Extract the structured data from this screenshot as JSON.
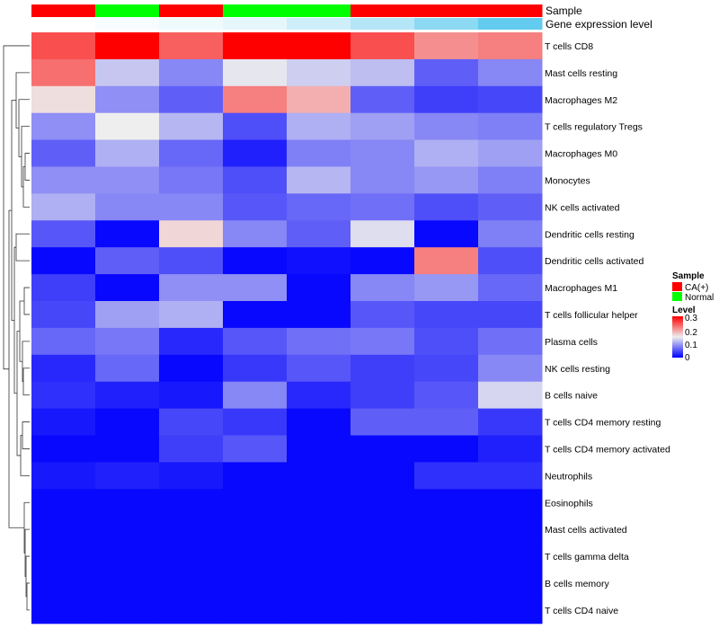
{
  "chart_data": {
    "type": "heatmap",
    "title": "",
    "annotation_tracks": [
      {
        "name": "Sample",
        "values": [
          "CA(+)",
          "Normal",
          "CA(+)",
          "Normal",
          "Normal",
          "CA(+)",
          "CA(+)",
          "CA(+)"
        ]
      },
      {
        "name": "Gene expression level",
        "values": [
          0,
          0.05,
          0.1,
          0.15,
          0.3,
          0.45,
          0.7,
          0.95
        ],
        "colors": [
          "#ffffff",
          "#5bc8ee"
        ]
      }
    ],
    "rows": [
      "T cells CD8",
      "Mast cells resting",
      "Macrophages M2",
      "T cells regulatory  Tregs",
      "Macrophages M0",
      "Monocytes",
      "NK cells activated",
      "Dendritic cells resting",
      "Dendritic cells activated",
      "Macrophages M1",
      "T cells follicular helper",
      "Plasma cells",
      "NK cells resting",
      "B cells naive",
      "T cells CD4 memory resting",
      "T cells CD4 memory activated",
      "Neutrophils",
      "Eosinophils",
      "Mast cells activated",
      "T cells gamma delta",
      "B cells memory",
      "T cells CD4 naive"
    ],
    "values": [
      [
        0.25,
        0.3,
        0.24,
        0.3,
        0.3,
        0.25,
        0.21,
        0.22
      ],
      [
        0.23,
        0.125,
        0.085,
        0.145,
        0.13,
        0.12,
        0.06,
        0.085
      ],
      [
        0.16,
        0.09,
        0.06,
        0.22,
        0.19,
        0.06,
        0.04,
        0.045
      ],
      [
        0.09,
        0.15,
        0.115,
        0.05,
        0.11,
        0.1,
        0.085,
        0.08
      ],
      [
        0.06,
        0.11,
        0.065,
        0.02,
        0.08,
        0.085,
        0.11,
        0.1
      ],
      [
        0.09,
        0.09,
        0.075,
        0.05,
        0.115,
        0.085,
        0.095,
        0.08
      ],
      [
        0.11,
        0.085,
        0.085,
        0.055,
        0.065,
        0.07,
        0.05,
        0.06
      ],
      [
        0.055,
        0.005,
        0.165,
        0.085,
        0.06,
        0.14,
        0.005,
        0.08
      ],
      [
        0.005,
        0.06,
        0.05,
        0.005,
        0.01,
        0.005,
        0.22,
        0.05
      ],
      [
        0.04,
        0.005,
        0.09,
        0.09,
        0.005,
        0.085,
        0.095,
        0.065
      ],
      [
        0.045,
        0.1,
        0.11,
        0.005,
        0.005,
        0.055,
        0.045,
        0.045
      ],
      [
        0.065,
        0.075,
        0.025,
        0.055,
        0.07,
        0.075,
        0.05,
        0.07
      ],
      [
        0.025,
        0.065,
        0.005,
        0.035,
        0.055,
        0.04,
        0.045,
        0.085
      ],
      [
        0.03,
        0.02,
        0.015,
        0.085,
        0.025,
        0.04,
        0.055,
        0.135
      ],
      [
        0.015,
        0.005,
        0.045,
        0.035,
        0.005,
        0.06,
        0.06,
        0.035
      ],
      [
        0.005,
        0.005,
        0.04,
        0.055,
        0.005,
        0.005,
        0.005,
        0.02
      ],
      [
        0.015,
        0.02,
        0.015,
        0.005,
        0.005,
        0.005,
        0.03,
        0.03
      ],
      [
        0.005,
        0.005,
        0.005,
        0.005,
        0.005,
        0.005,
        0.005,
        0.005
      ],
      [
        0.005,
        0.005,
        0.005,
        0.005,
        0.005,
        0.005,
        0.005,
        0.005
      ],
      [
        0.005,
        0.005,
        0.005,
        0.005,
        0.005,
        0.005,
        0.005,
        0.005
      ],
      [
        0.005,
        0.005,
        0.005,
        0.005,
        0.005,
        0.005,
        0.005,
        0.005
      ],
      [
        0.005,
        0.005,
        0.005,
        0.005,
        0.005,
        0.005,
        0.005,
        0.005
      ]
    ],
    "color_scale": {
      "min": 0,
      "mid": 0.15,
      "max": 0.3,
      "low": "#0000ff",
      "mid_color": "#eeeeee",
      "high": "#ff0000"
    },
    "legend": {
      "sample_title": "Sample",
      "sample_entries": [
        {
          "label": "CA(+)",
          "color": "#ff0000"
        },
        {
          "label": "Normal",
          "color": "#00ff00"
        }
      ],
      "level_title": "Level",
      "level_ticks": [
        "0.3",
        "0.2",
        "0.1",
        "0"
      ],
      "placement": "right"
    },
    "row_dendrogram": true,
    "column_dendrogram": false
  }
}
